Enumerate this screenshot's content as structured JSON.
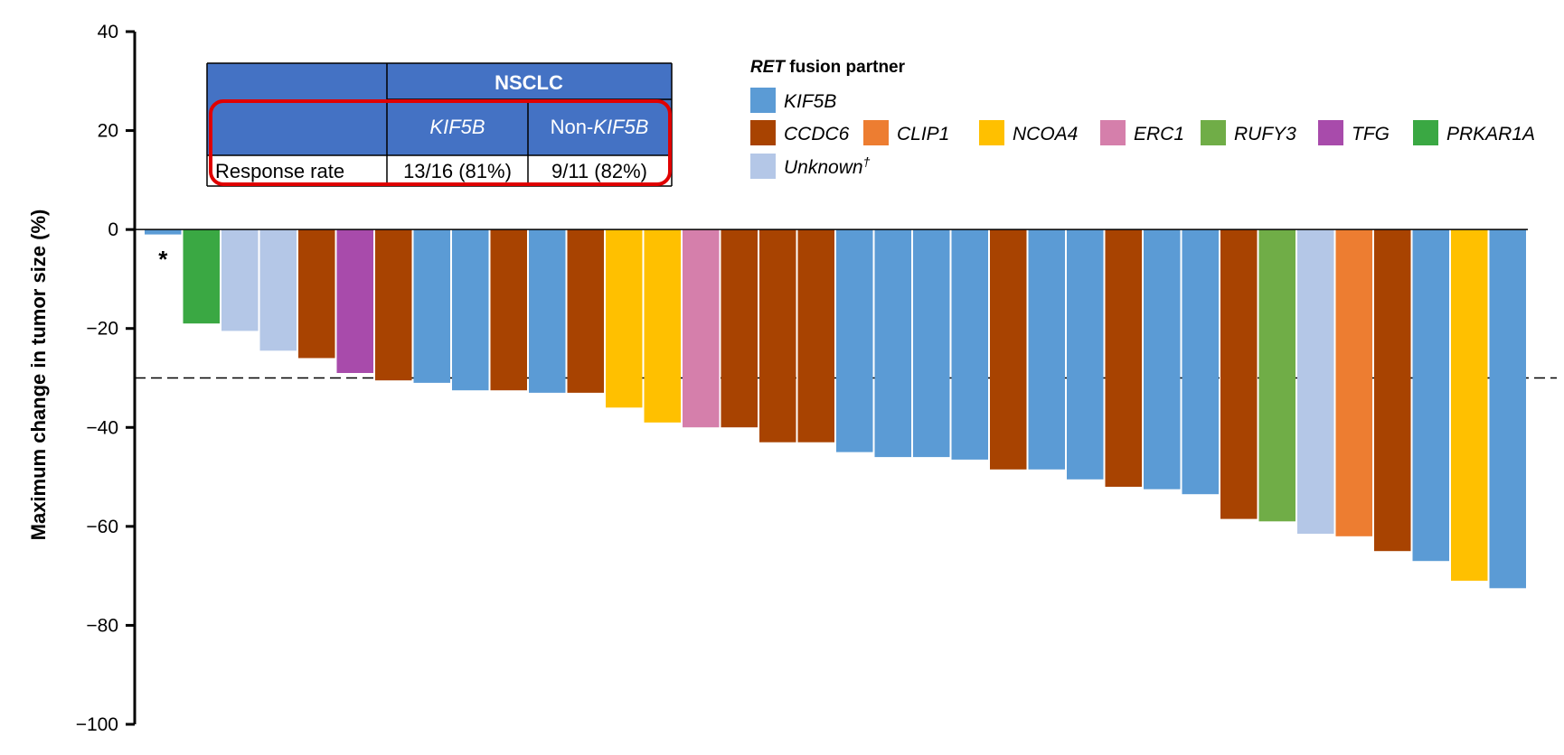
{
  "chart_data": {
    "type": "bar",
    "ylabel": "Maximum change in tumor size (%)",
    "ylim": [
      -100,
      40
    ],
    "yticks": [
      40,
      20,
      0,
      -20,
      -40,
      -60,
      -80,
      -100
    ],
    "ytick_labels": [
      "40",
      "20",
      "0",
      "−20",
      "−40",
      "−60",
      "−80",
      "−100"
    ],
    "reference_line": -30,
    "bar_annotation": {
      "bar_index": 0,
      "text": "*"
    },
    "values": [
      -1,
      -19,
      -20.5,
      -24.5,
      -26,
      -29,
      -30.5,
      -31,
      -32.5,
      -32.5,
      -33,
      -33,
      -36,
      -39,
      -40,
      -40,
      -43,
      -43,
      -45,
      -46,
      -46,
      -46.5,
      -48.5,
      -48.5,
      -50.5,
      -52,
      -52.5,
      -53.5,
      -58.5,
      -59,
      -61.5,
      -62,
      -65,
      -67,
      -71,
      -72.5
    ],
    "partners": [
      "KIF5B",
      "PRKAR1A",
      "Unknown",
      "Unknown",
      "CCDC6",
      "TFG",
      "CCDC6",
      "KIF5B",
      "KIF5B",
      "CCDC6",
      "KIF5B",
      "CCDC6",
      "NCOA4",
      "NCOA4",
      "ERC1",
      "CCDC6",
      "CCDC6",
      "CCDC6",
      "KIF5B",
      "KIF5B",
      "KIF5B",
      "KIF5B",
      "CCDC6",
      "KIF5B",
      "KIF5B",
      "CCDC6",
      "KIF5B",
      "KIF5B",
      "CCDC6",
      "RUFY3",
      "Unknown",
      "CLIP1",
      "CCDC6",
      "KIF5B",
      "NCOA4",
      "KIF5B"
    ],
    "colors": {
      "KIF5B": "#5b9bd5",
      "CCDC6": "#a84301",
      "CLIP1": "#ed7d31",
      "NCOA4": "#ffc000",
      "ERC1": "#d57fab",
      "RUFY3": "#70ad47",
      "TFG": "#a84bab",
      "PRKAR1A": "#3aa843",
      "Unknown": "#b4c7e7"
    },
    "legend": {
      "title_italic": "RET",
      "title_rest": " fusion partner",
      "entries": [
        {
          "key": "KIF5B",
          "label": "KIF5B"
        },
        {
          "key": "CCDC6",
          "label": "CCDC6"
        },
        {
          "key": "CLIP1",
          "label": "CLIP1"
        },
        {
          "key": "NCOA4",
          "label": "NCOA4"
        },
        {
          "key": "ERC1",
          "label": "ERC1"
        },
        {
          "key": "RUFY3",
          "label": "RUFY3"
        },
        {
          "key": "TFG",
          "label": "TFG"
        },
        {
          "key": "PRKAR1A",
          "label": "PRKAR1A"
        },
        {
          "key": "Unknown",
          "label": "Unknown",
          "sup": "†"
        }
      ]
    },
    "inset_table": {
      "header": "NSCLC",
      "col1": "KIF5B",
      "col2_prefix": "Non-",
      "col2_italic": "KIF5B",
      "row_label": "Response rate",
      "col1_value": "13/16 (81%)",
      "col2_value": "9/11 (82%)",
      "header_color": "#4472c4",
      "highlight_color": "#e00000"
    }
  }
}
